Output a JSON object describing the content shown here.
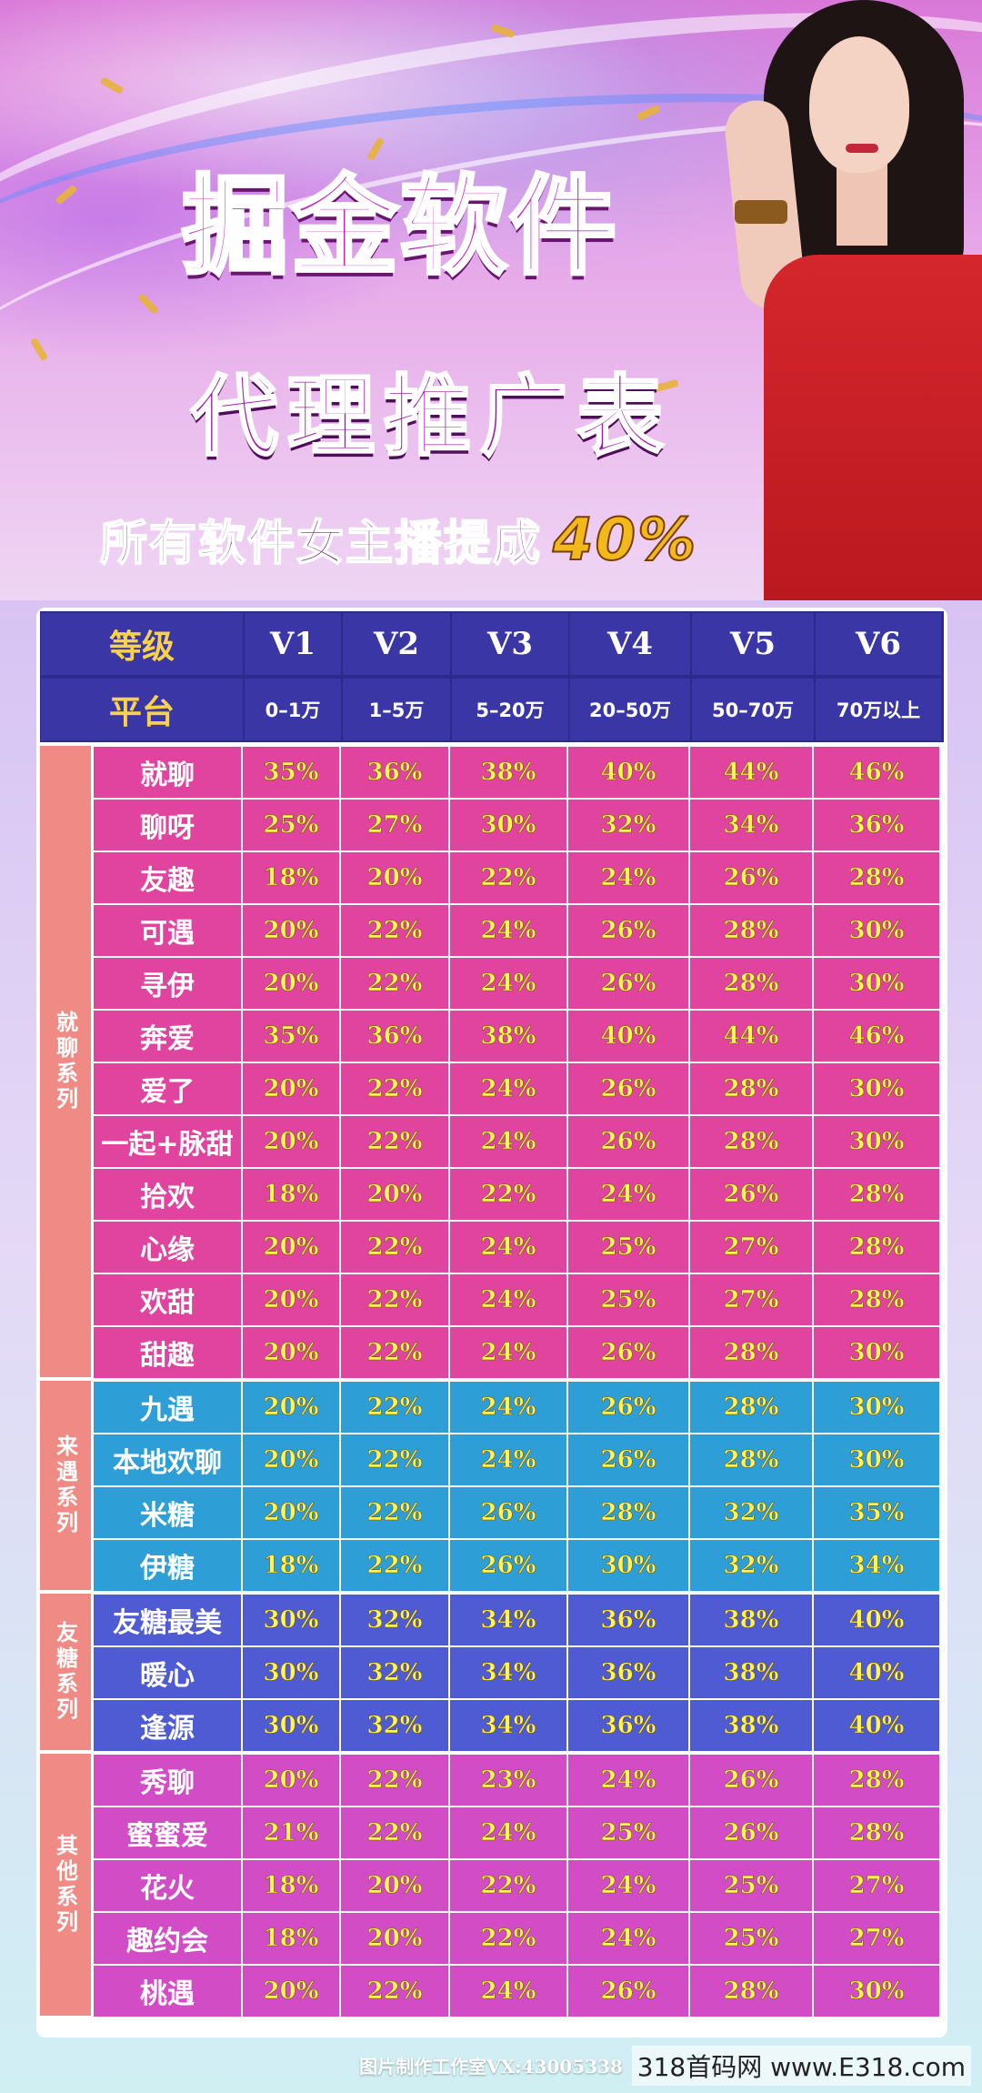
{
  "title": {
    "line1": "掘金软件",
    "line2": "代理推广表",
    "subtitle": "所有软件女主播提成",
    "highlight": "40%"
  },
  "colors": {
    "header_bg": "#2e2a8e",
    "header_gold": "#f8d248",
    "series1": "#e0449e",
    "series2": "#2e9fd6",
    "series3": "#4f5bd2",
    "series4": "#d24cc6",
    "value_yellow": "#fff55a",
    "dress_red": "#c81f27"
  },
  "table": {
    "header": {
      "level_label": "等级",
      "platform_label": "平台",
      "levels": [
        "V1",
        "V2",
        "V3",
        "V4",
        "V5",
        "V6"
      ],
      "ranges": [
        "0–1万",
        "1–5万",
        "5–20万",
        "20–50万",
        "50–70万",
        "70万以上"
      ]
    },
    "groups": [
      {
        "label": "就聊系列",
        "rows": [
          {
            "name": "就聊",
            "values": [
              "35%",
              "36%",
              "38%",
              "40%",
              "44%",
              "46%"
            ]
          },
          {
            "name": "聊呀",
            "values": [
              "25%",
              "27%",
              "30%",
              "32%",
              "34%",
              "36%"
            ]
          },
          {
            "name": "友趣",
            "values": [
              "18%",
              "20%",
              "22%",
              "24%",
              "26%",
              "28%"
            ]
          },
          {
            "name": "可遇",
            "values": [
              "20%",
              "22%",
              "24%",
              "26%",
              "28%",
              "30%"
            ]
          },
          {
            "name": "寻伊",
            "values": [
              "20%",
              "22%",
              "24%",
              "26%",
              "28%",
              "30%"
            ]
          },
          {
            "name": "奔爱",
            "values": [
              "35%",
              "36%",
              "38%",
              "40%",
              "44%",
              "46%"
            ]
          },
          {
            "name": "爱了",
            "values": [
              "20%",
              "22%",
              "24%",
              "26%",
              "28%",
              "30%"
            ]
          },
          {
            "name": "一起+脉甜",
            "values": [
              "20%",
              "22%",
              "24%",
              "26%",
              "28%",
              "30%"
            ]
          },
          {
            "name": "拾欢",
            "values": [
              "18%",
              "20%",
              "22%",
              "24%",
              "26%",
              "28%"
            ]
          },
          {
            "name": "心缘",
            "values": [
              "20%",
              "22%",
              "24%",
              "25%",
              "27%",
              "28%"
            ]
          },
          {
            "name": "欢甜",
            "values": [
              "20%",
              "22%",
              "24%",
              "25%",
              "27%",
              "28%"
            ]
          },
          {
            "name": "甜趣",
            "values": [
              "20%",
              "22%",
              "24%",
              "26%",
              "28%",
              "30%"
            ]
          }
        ]
      },
      {
        "label": "来遇系列",
        "rows": [
          {
            "name": "九遇",
            "values": [
              "20%",
              "22%",
              "24%",
              "26%",
              "28%",
              "30%"
            ]
          },
          {
            "name": "本地欢聊",
            "values": [
              "20%",
              "22%",
              "24%",
              "26%",
              "28%",
              "30%"
            ]
          },
          {
            "name": "米糖",
            "values": [
              "20%",
              "22%",
              "26%",
              "28%",
              "32%",
              "35%"
            ]
          },
          {
            "name": "伊糖",
            "values": [
              "18%",
              "22%",
              "26%",
              "30%",
              "32%",
              "34%"
            ]
          }
        ]
      },
      {
        "label": "友糖系列",
        "rows": [
          {
            "name": "友糖最美",
            "values": [
              "30%",
              "32%",
              "34%",
              "36%",
              "38%",
              "40%"
            ]
          },
          {
            "name": "暖心",
            "values": [
              "30%",
              "32%",
              "34%",
              "36%",
              "38%",
              "40%"
            ]
          },
          {
            "name": "逢源",
            "values": [
              "30%",
              "32%",
              "34%",
              "36%",
              "38%",
              "40%"
            ]
          }
        ]
      },
      {
        "label": "其他系列",
        "rows": [
          {
            "name": "秀聊",
            "values": [
              "20%",
              "22%",
              "23%",
              "24%",
              "26%",
              "28%"
            ]
          },
          {
            "name": "蜜蜜爱",
            "values": [
              "21%",
              "22%",
              "24%",
              "25%",
              "26%",
              "28%"
            ]
          },
          {
            "name": "花火",
            "values": [
              "18%",
              "20%",
              "22%",
              "24%",
              "25%",
              "27%"
            ]
          },
          {
            "name": "趣约会",
            "values": [
              "18%",
              "20%",
              "22%",
              "24%",
              "25%",
              "27%"
            ]
          },
          {
            "name": "桃遇",
            "values": [
              "20%",
              "22%",
              "24%",
              "26%",
              "28%",
              "30%"
            ]
          }
        ]
      }
    ]
  },
  "footer": {
    "credit": "图片制作工作室VX:43005338",
    "watermark": "318首码网 www.E318.com"
  }
}
